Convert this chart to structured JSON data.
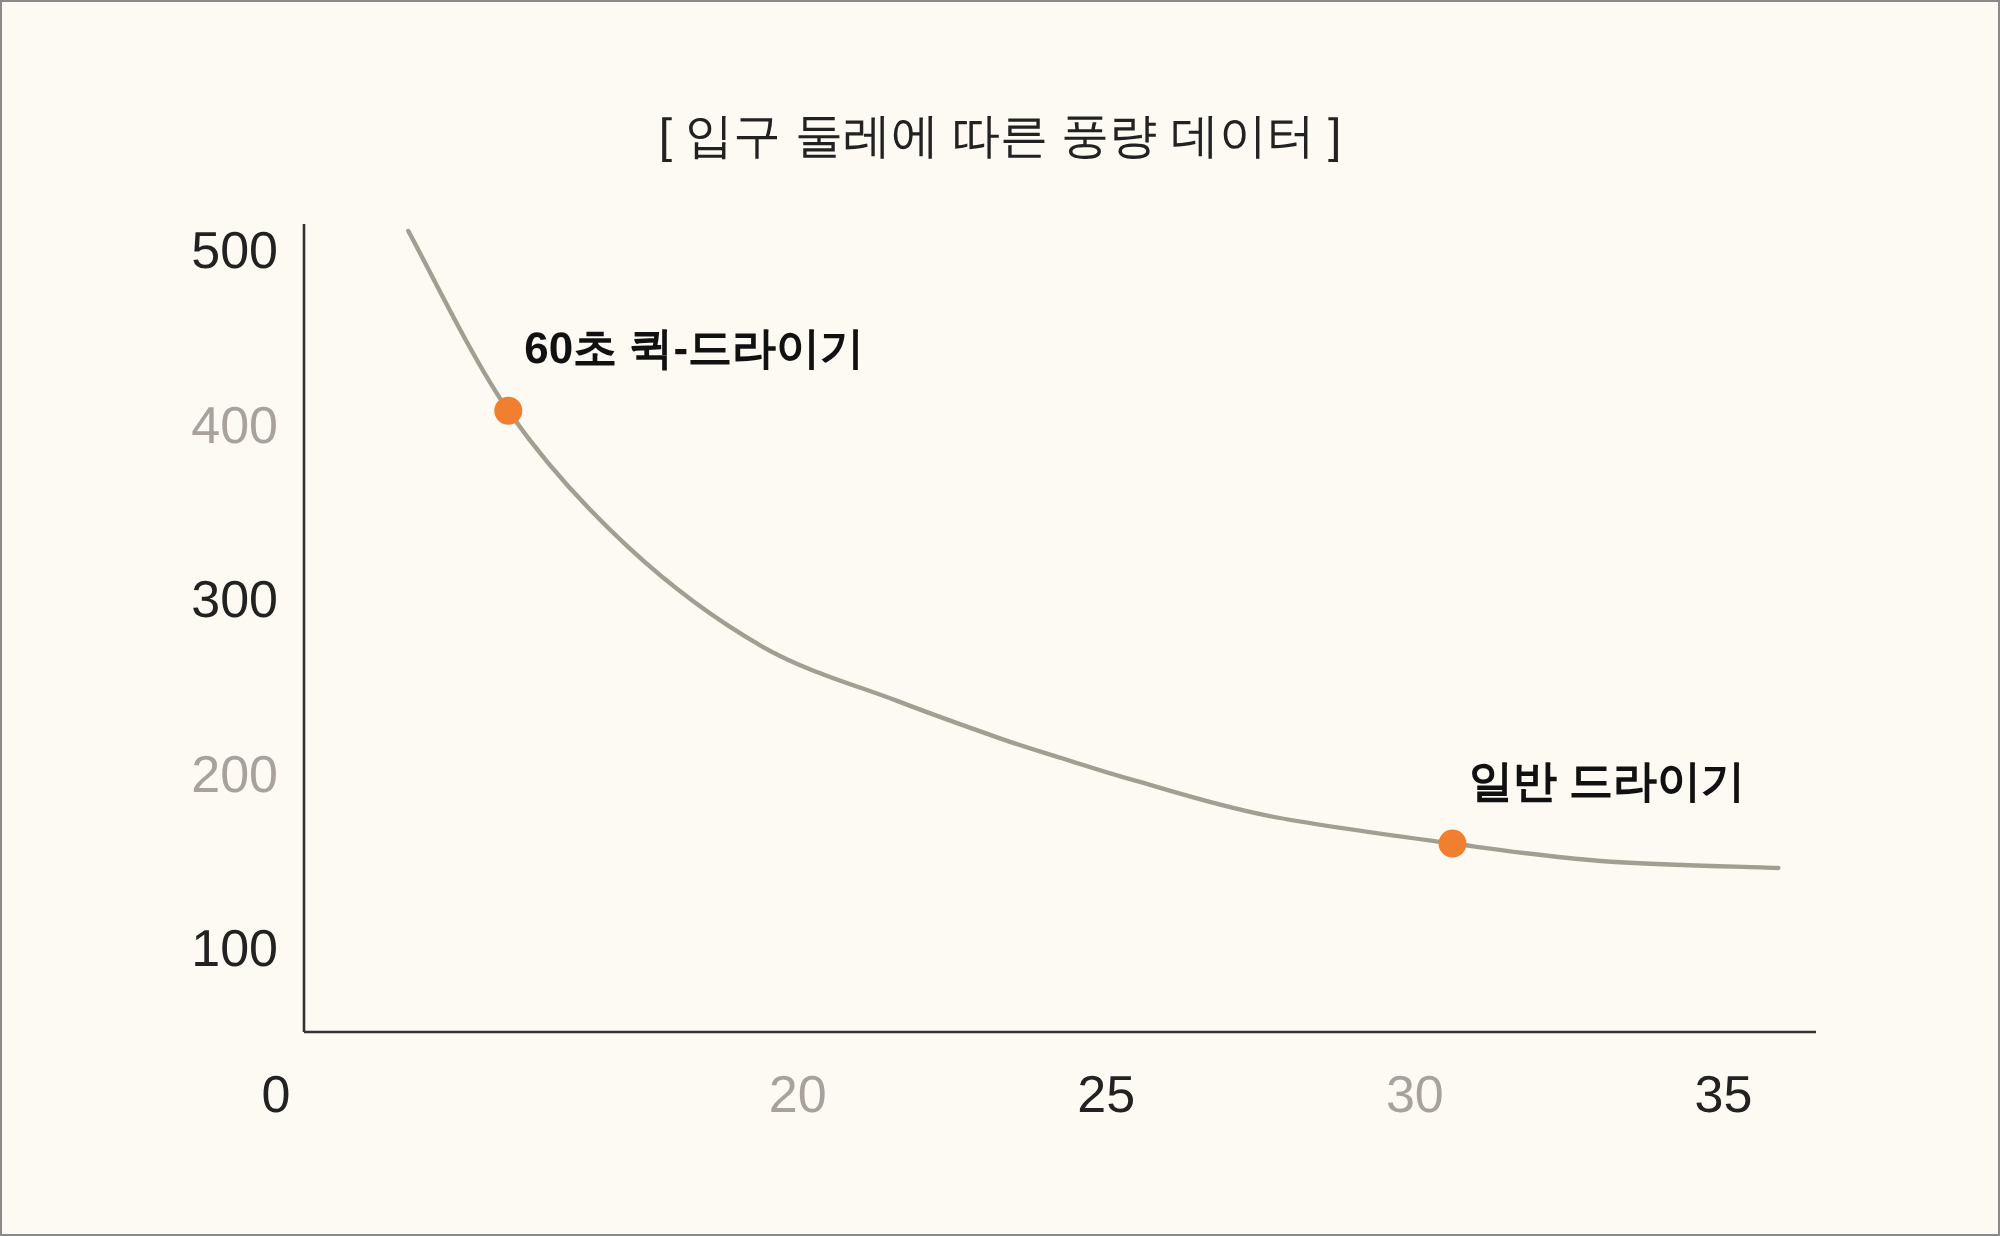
{
  "chart_data": {
    "type": "line",
    "title": "[ 입구 둘레에 따른 풍량 데이터 ]",
    "xlim": [
      12,
      36.5
    ],
    "ylim": [
      52,
      515
    ],
    "xticks": [
      20,
      25,
      30,
      35
    ],
    "yticks": [
      100,
      200,
      300,
      400,
      500
    ],
    "grid": false,
    "series": [
      {
        "color": "#a39e92",
        "marker": "none",
        "x": [
          13.69,
          15.31,
          17.25,
          19.42,
          21.59,
          23.3,
          24.27,
          25.47,
          27.61,
          30.61,
          33.01,
          35.89
        ],
        "values": [
          511,
          408,
          330,
          273,
          242,
          220,
          209,
          196,
          176,
          160,
          150,
          146
        ]
      },
      {
        "type": "scatter",
        "color": "#f08030",
        "marker": "circle",
        "x": [
          15.31,
          30.61
        ],
        "values": [
          408,
          160
        ]
      }
    ],
    "annotations": [
      "0",
      {
        "text": "60초 퀵-드라이기",
        "x": 15.31,
        "y": 408
      },
      {
        "text": "일반 드라이기",
        "x": 30.61,
        "y": 160
      }
    ]
  }
}
